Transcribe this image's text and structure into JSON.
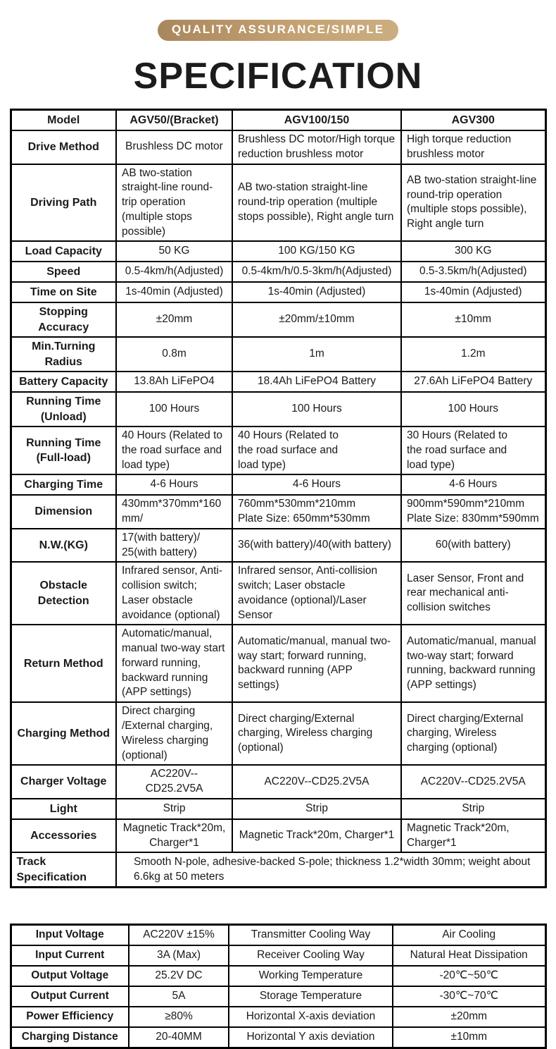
{
  "badge": {
    "label": "QUALITY ASSURANCE/SIMPLE"
  },
  "title": "SPECIFICATION",
  "colors": {
    "badge_gradient_left": "#a9875c",
    "badge_gradient_right": "#cbae80",
    "badge_text": "#ffffff",
    "table_border": "#000000",
    "text": "#1a1a1a"
  },
  "spec_table": {
    "columns": [
      "Model",
      "AGV50/(Bracket)",
      "AGV100/150",
      "AGV300"
    ],
    "rows": [
      {
        "label": "Drive Method",
        "cells": [
          "Brushless DC motor",
          "Brushless DC motor/High torque reduction brushless motor",
          "High torque reduction brushless motor"
        ]
      },
      {
        "label": "Driving Path",
        "cells": [
          "AB two-station straight-line round-trip operation (multiple stops possible)",
          "AB two-station straight-line round-trip operation (multiple stops possible), Right angle turn",
          "AB two-station straight-line round-trip operation (multiple stops possible), Right angle turn"
        ]
      },
      {
        "label": "Load Capacity",
        "cells": [
          "50 KG",
          "100 KG/150 KG",
          "300 KG"
        ]
      },
      {
        "label": "Speed",
        "cells": [
          "0.5-4km/h(Adjusted)",
          "0.5-4km/h/0.5-3km/h(Adjusted)",
          "0.5-3.5km/h(Adjusted)"
        ]
      },
      {
        "label": "Time on Site",
        "cells": [
          "1s-40min (Adjusted)",
          "1s-40min (Adjusted)",
          "1s-40min (Adjusted)"
        ]
      },
      {
        "label": "Stopping Accuracy",
        "cells": [
          "±20mm",
          "±20mm/±10mm",
          "±10mm"
        ]
      },
      {
        "label": "Min.Turning Radius",
        "cells": [
          "0.8m",
          "1m",
          "1.2m"
        ]
      },
      {
        "label": "Battery Capacity",
        "cells": [
          "13.8Ah LiFePO4",
          "18.4Ah LiFePO4 Battery",
          "27.6Ah LiFePO4 Battery"
        ]
      },
      {
        "label": "Running Time (Unload)",
        "cells": [
          "100 Hours",
          "100 Hours",
          "100 Hours"
        ]
      },
      {
        "label": "Running Time (Full-load)",
        "cells": [
          "40 Hours (Related to the road surface and load type)",
          "40 Hours (Related to\nthe road surface and\nload type)",
          "30 Hours (Related to\nthe road surface and\nload type)"
        ]
      },
      {
        "label": "Charging Time",
        "cells": [
          "4-6 Hours",
          "4-6 Hours",
          "4-6 Hours"
        ]
      },
      {
        "label": "Dimension",
        "cells": [
          "430mm*370mm*160\nmm/",
          "760mm*530mm*210mm\nPlate Size: 650mm*530mm",
          "900mm*590mm*210mm\nPlate Size: 830mm*590mm"
        ]
      },
      {
        "label": "N.W.(KG)",
        "cells": [
          "17(with battery)/\n25(with battery)",
          "36(with battery)/40(with battery)",
          "60(with battery)"
        ]
      },
      {
        "label": "Obstacle Detection",
        "cells": [
          "Infrared sensor, Anti-collision switch; Laser obstacle avoidance (optional)",
          "Infrared sensor, Anti-collision switch; Laser obstacle avoidance (optional)/Laser Sensor",
          "Laser Sensor, Front and rear mechanical anti-collision switches"
        ]
      },
      {
        "label": "Return Method",
        "cells": [
          "Automatic/manual, manual two-way start forward running, backward running (APP settings)",
          "Automatic/manual, manual two-way start; forward running, backward running (APP settings)",
          "Automatic/manual, manual two-way start; forward running, backward running (APP settings)"
        ]
      },
      {
        "label": "Charging Method",
        "cells": [
          "Direct charging /External charging, Wireless charging (optional)",
          "Direct charging/External charging, Wireless charging (optional)",
          "Direct charging/External charging, Wireless charging (optional)"
        ]
      },
      {
        "label": "Charger Voltage",
        "cells": [
          "AC220V--CD25.2V5A",
          "AC220V--CD25.2V5A",
          "AC220V--CD25.2V5A"
        ]
      },
      {
        "label": "Light",
        "cells": [
          "Strip",
          "Strip",
          "Strip"
        ]
      },
      {
        "label": "Accessories",
        "cells": [
          "Magnetic Track*20m, Charger*1",
          "Magnetic Track*20m, Charger*1",
          "Magnetic Track*20m,\nCharger*1"
        ]
      }
    ],
    "span_row": {
      "label": "Track Specification",
      "value": "Smooth N-pole, adhesive-backed S-pole; thickness 1.2*width 30mm; weight about 6.6kg at 50 meters"
    }
  },
  "power_table": {
    "rows": [
      [
        "Input Voltage",
        "AC220V ±15%",
        "Transmitter Cooling Way",
        "Air Cooling"
      ],
      [
        "Input Current",
        "3A (Max)",
        "Receiver Cooling Way",
        "Natural Heat Dissipation"
      ],
      [
        "Output Voltage",
        "25.2V DC",
        "Working Temperature",
        "-20℃~50℃"
      ],
      [
        "Output Current",
        "5A",
        "Storage Temperature",
        "-30℃~70℃"
      ],
      [
        "Power Efficiency",
        "≥80%",
        "Horizontal X-axis deviation",
        "±20mm"
      ],
      [
        "Charging Distance",
        "20-40MM",
        "Horizontal Y axis deviation",
        "±10mm"
      ]
    ]
  }
}
